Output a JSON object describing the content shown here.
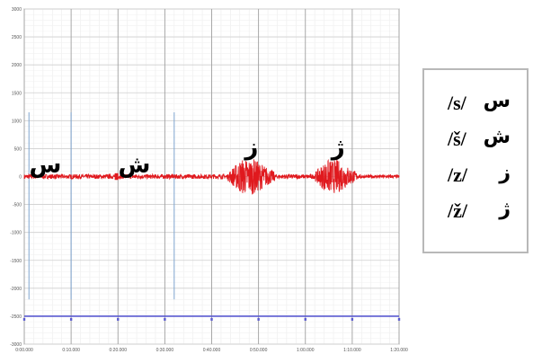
{
  "chart_data": {
    "type": "line",
    "title": "",
    "xlabel": "",
    "ylabel": "",
    "y_ticks": [
      "3000",
      "2500",
      "2000",
      "1500",
      "1000",
      "500",
      "0",
      "-500",
      "-1000",
      "-1500",
      "-2000",
      "-2500",
      "-3000"
    ],
    "y_tick_values": [
      3000,
      2500,
      2000,
      1500,
      1000,
      500,
      0,
      -500,
      -1000,
      -1500,
      -2000,
      -2500,
      -3000
    ],
    "x_ticks": [
      "0:00.000",
      "0:10.000",
      "0:20.000",
      "0:30.000",
      "0:40.000",
      "0:50.000",
      "1:00.000",
      "1:10.000",
      "1:20.000"
    ],
    "x_tick_values": [
      0,
      10,
      20,
      30,
      40,
      50,
      60,
      70,
      80
    ],
    "xlim": [
      0,
      80
    ],
    "ylim": [
      -3000,
      3000
    ],
    "grid": true,
    "series": [
      {
        "color": "#e0191e",
        "segments": [
          {
            "start": 0,
            "end": 43.5,
            "amplitude": 40
          },
          {
            "start": 43.5,
            "end": 53.5,
            "amplitude": 320
          },
          {
            "start": 53.5,
            "end": 62.0,
            "amplitude": 40
          },
          {
            "start": 62.0,
            "end": 71.0,
            "amplitude": 300
          },
          {
            "start": 71.0,
            "end": 80.0,
            "amplitude": 30
          }
        ]
      }
    ],
    "markers": [
      1,
      10,
      32
    ],
    "region_labels": [
      {
        "text": "س",
        "x": 4.5
      },
      {
        "text": "ش",
        "x": 23.5
      },
      {
        "text": "ز",
        "x": 48.5
      },
      {
        "text": "ژ",
        "x": 67.0
      }
    ],
    "baseline_value": -2500,
    "baseline_color": "#5a5ad0"
  },
  "legend": [
    {
      "ipa": "/s/",
      "arabic": "س"
    },
    {
      "ipa": "/š/",
      "arabic": "ش"
    },
    {
      "ipa": "/z/",
      "arabic": "ز"
    },
    {
      "ipa": "/ž/",
      "arabic": "ژ"
    }
  ]
}
